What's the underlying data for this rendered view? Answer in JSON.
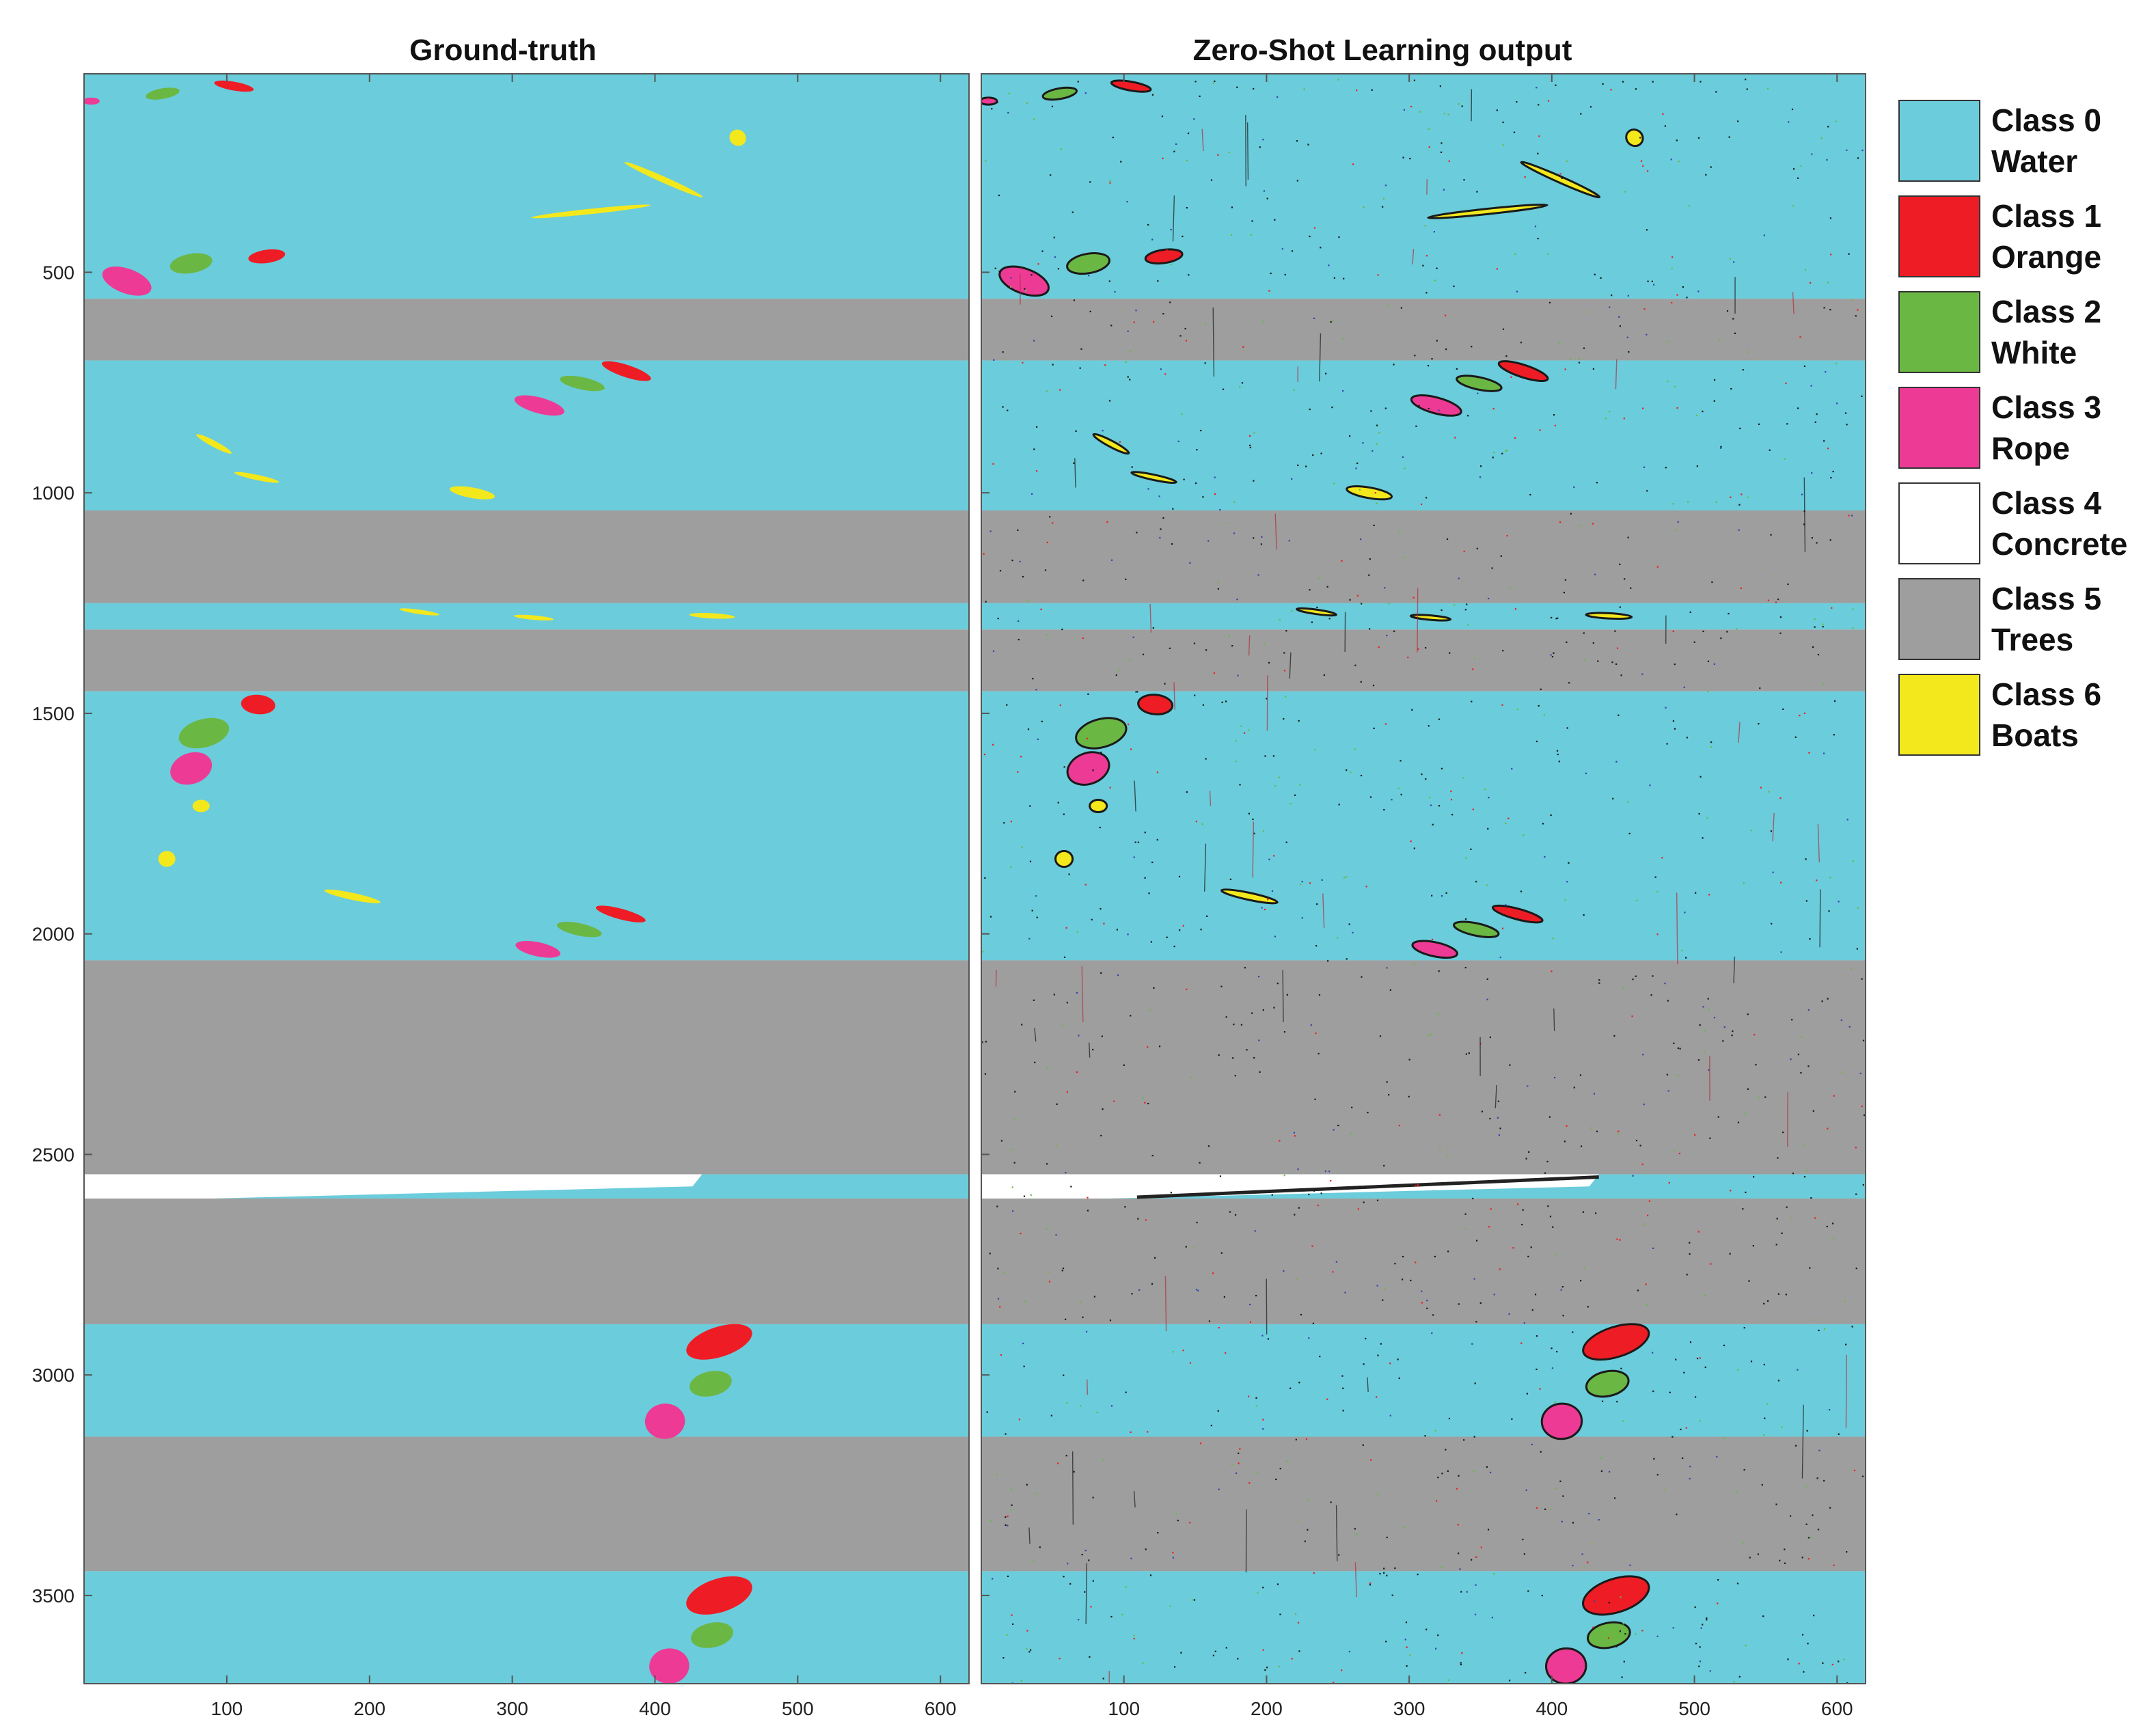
{
  "chart_data": [
    {
      "type": "heatmap",
      "title": "Ground-truth",
      "xlabel": "",
      "ylabel": "",
      "xlim": [
        0,
        620
      ],
      "ylim": [
        3700,
        50
      ],
      "x_ticks": [
        "100",
        "200",
        "300",
        "400",
        "500",
        "600"
      ],
      "y_ticks": [
        "500",
        "1000",
        "1500",
        "2000",
        "2500",
        "3000",
        "3500"
      ],
      "bands": [
        {
          "class": 0,
          "from": 50,
          "to": 560
        },
        {
          "class": 5,
          "from": 560,
          "to": 700
        },
        {
          "class": 0,
          "from": 700,
          "to": 1040
        },
        {
          "class": 5,
          "from": 1040,
          "to": 1250
        },
        {
          "class": 0,
          "from": 1250,
          "to": 1310
        },
        {
          "class": 5,
          "from": 1310,
          "to": 1450
        },
        {
          "class": 0,
          "from": 1450,
          "to": 2060
        },
        {
          "class": 5,
          "from": 2060,
          "to": 2545
        },
        {
          "class": 0,
          "from": 2545,
          "to": 2600
        },
        {
          "class": 5,
          "from": 2600,
          "to": 2885
        },
        {
          "class": 0,
          "from": 2885,
          "to": 3140
        },
        {
          "class": 5,
          "from": 3140,
          "to": 3445
        },
        {
          "class": 0,
          "from": 3445,
          "to": 3700
        }
      ],
      "concrete": {
        "class": 4,
        "row_top": 2545,
        "row_bottom": 2600,
        "x_end_top": 433,
        "x_end_bottom": 90
      },
      "objects": [
        {
          "class": 3,
          "x": 5,
          "y": 112,
          "rx": 6,
          "ry": 8,
          "rot": 0
        },
        {
          "class": 2,
          "x": 55,
          "y": 95,
          "rx": 12,
          "ry": 12,
          "rot": -10
        },
        {
          "class": 1,
          "x": 105,
          "y": 78,
          "rx": 14,
          "ry": 10,
          "rot": 10
        },
        {
          "class": 6,
          "x": 458,
          "y": 195,
          "rx": 6,
          "ry": 18,
          "rot": 40
        },
        {
          "class": 6,
          "x": 406,
          "y": 290,
          "rx": 30,
          "ry": 7,
          "rot": 24
        },
        {
          "class": 6,
          "x": 355,
          "y": 362,
          "rx": 42,
          "ry": 6,
          "rot": -6
        },
        {
          "class": 1,
          "x": 128,
          "y": 464,
          "rx": 13,
          "ry": 15,
          "rot": -8
        },
        {
          "class": 2,
          "x": 75,
          "y": 480,
          "rx": 15,
          "ry": 22,
          "rot": -10
        },
        {
          "class": 3,
          "x": 30,
          "y": 520,
          "rx": 18,
          "ry": 28,
          "rot": 20
        },
        {
          "class": 1,
          "x": 380,
          "y": 724,
          "rx": 18,
          "ry": 14,
          "rot": 18
        },
        {
          "class": 2,
          "x": 349,
          "y": 752,
          "rx": 16,
          "ry": 14,
          "rot": 12
        },
        {
          "class": 3,
          "x": 319,
          "y": 802,
          "rx": 18,
          "ry": 18,
          "rot": 15
        },
        {
          "class": 6,
          "x": 91,
          "y": 889,
          "rx": 14,
          "ry": 7,
          "rot": 28
        },
        {
          "class": 6,
          "x": 121,
          "y": 965,
          "rx": 16,
          "ry": 6,
          "rot": 12
        },
        {
          "class": 6,
          "x": 272,
          "y": 1000,
          "rx": 16,
          "ry": 12,
          "rot": 10
        },
        {
          "class": 6,
          "x": 235,
          "y": 1270,
          "rx": 14,
          "ry": 5,
          "rot": 8
        },
        {
          "class": 6,
          "x": 315,
          "y": 1283,
          "rx": 14,
          "ry": 5,
          "rot": 5
        },
        {
          "class": 6,
          "x": 440,
          "y": 1279,
          "rx": 16,
          "ry": 6,
          "rot": 3
        },
        {
          "class": 1,
          "x": 122,
          "y": 1480,
          "rx": 12,
          "ry": 22,
          "rot": 5
        },
        {
          "class": 2,
          "x": 84,
          "y": 1545,
          "rx": 18,
          "ry": 32,
          "rot": -15
        },
        {
          "class": 3,
          "x": 75,
          "y": 1625,
          "rx": 15,
          "ry": 35,
          "rot": -20
        },
        {
          "class": 6,
          "x": 82,
          "y": 1710,
          "rx": 6,
          "ry": 14,
          "rot": 0
        },
        {
          "class": 6,
          "x": 58,
          "y": 1830,
          "rx": 6,
          "ry": 18,
          "rot": 0
        },
        {
          "class": 6,
          "x": 188,
          "y": 1915,
          "rx": 20,
          "ry": 8,
          "rot": 12
        },
        {
          "class": 1,
          "x": 376,
          "y": 1955,
          "rx": 18,
          "ry": 12,
          "rot": 15
        },
        {
          "class": 2,
          "x": 347,
          "y": 1990,
          "rx": 16,
          "ry": 14,
          "rot": 12
        },
        {
          "class": 3,
          "x": 318,
          "y": 2035,
          "rx": 16,
          "ry": 16,
          "rot": 12
        },
        {
          "class": 1,
          "x": 445,
          "y": 2925,
          "rx": 24,
          "ry": 34,
          "rot": -18
        },
        {
          "class": 2,
          "x": 439,
          "y": 3020,
          "rx": 15,
          "ry": 28,
          "rot": -12
        },
        {
          "class": 3,
          "x": 407,
          "y": 3105,
          "rx": 14,
          "ry": 40,
          "rot": -5
        },
        {
          "class": 1,
          "x": 445,
          "y": 3500,
          "rx": 24,
          "ry": 38,
          "rot": -18
        },
        {
          "class": 2,
          "x": 440,
          "y": 3590,
          "rx": 15,
          "ry": 28,
          "rot": -12
        },
        {
          "class": 3,
          "x": 410,
          "y": 3660,
          "rx": 14,
          "ry": 40,
          "rot": -5
        }
      ]
    },
    {
      "type": "heatmap",
      "title": "Zero-Shot Learning output",
      "xlabel": "",
      "ylabel": "",
      "xlim": [
        0,
        620
      ],
      "ylim": [
        3700,
        50
      ],
      "x_ticks": [
        "100",
        "200",
        "300",
        "400",
        "500",
        "600"
      ],
      "y_ticks": [],
      "same_layout_as_ground_truth": true,
      "noise": "scattered misclassified pixels"
    }
  ],
  "legend": [
    {
      "class_label": "Class 0",
      "name": "Water",
      "color": "#6BCCDB"
    },
    {
      "class_label": "Class 1",
      "name": "Orange",
      "color": "#EE1C24"
    },
    {
      "class_label": "Class 2",
      "name": "White",
      "color": "#6BB744"
    },
    {
      "class_label": "Class 3",
      "name": "Rope",
      "color": "#EC3A95"
    },
    {
      "class_label": "Class 4",
      "name": "Concrete",
      "color": "#FFFFFF"
    },
    {
      "class_label": "Class 5",
      "name": "Trees",
      "color": "#9E9E9E"
    },
    {
      "class_label": "Class 6",
      "name": "Boats",
      "color": "#F3E81C"
    }
  ]
}
